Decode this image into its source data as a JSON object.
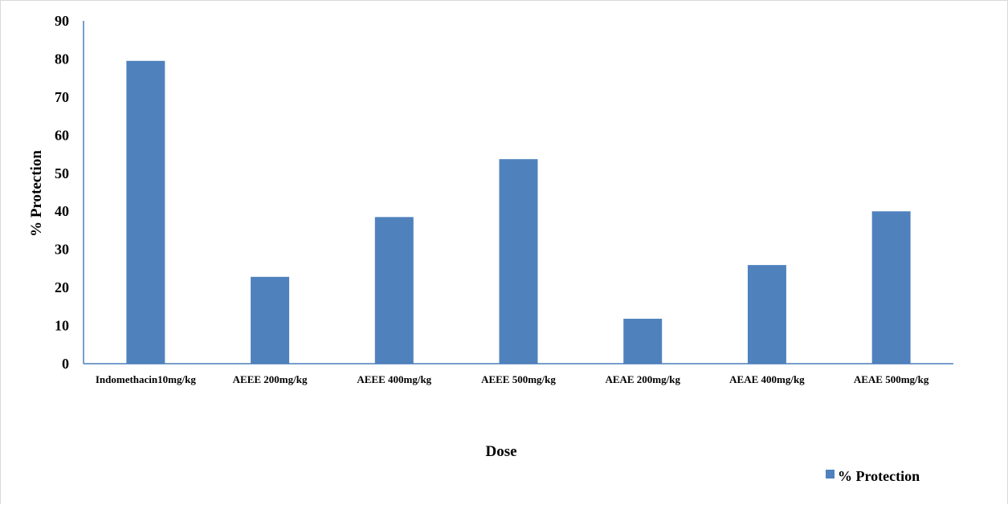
{
  "chart_data": {
    "type": "bar",
    "categories": [
      "Indomethacin10mg/kg",
      "AEEE 200mg/kg",
      "AEEE 400mg/kg",
      "AEEE 500mg/kg",
      "AEAE 200mg/kg",
      "AEAE 400mg/kg",
      "AEAE 500mg/kg"
    ],
    "series": [
      {
        "name": "% Protection",
        "values": [
          79.5,
          22.8,
          38.5,
          53.7,
          11.8,
          25.9,
          40.0
        ]
      }
    ],
    "xlabel": "Dose",
    "ylabel": "% Protection",
    "ylim": [
      0,
      90
    ],
    "yticks": [
      0,
      10,
      20,
      30,
      40,
      50,
      60,
      70,
      80,
      90
    ],
    "grid": false,
    "legend": {
      "position": "bottom-right",
      "entries": [
        "% Protection"
      ]
    },
    "colors": {
      "bar": "#4f81bd",
      "axis": "#4a7ebb"
    }
  }
}
